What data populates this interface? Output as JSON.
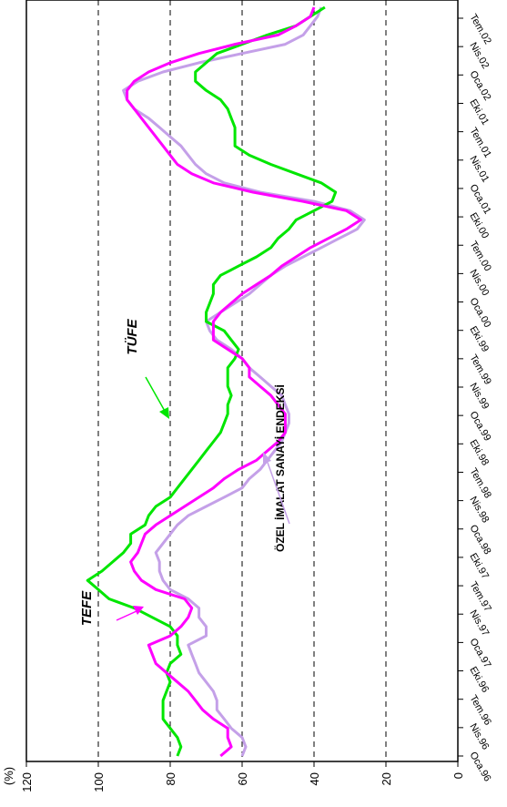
{
  "chart_data": {
    "type": "line",
    "ylabel": "(%)",
    "ylim": [
      0,
      120
    ],
    "yticks": [
      "0",
      "20",
      "40",
      "60",
      "80",
      "100",
      "120"
    ],
    "gridlines": [
      20,
      40,
      60,
      80,
      100
    ],
    "x_tick_labels": [
      "Oca.96",
      "Nis.96",
      "Tem.96",
      "Eki.96",
      "Oca.97",
      "Nis.97",
      "Tem.97",
      "Eki.97",
      "Oca.98",
      "Nis.98",
      "Tem.98",
      "Eki.98",
      "Oca.99",
      "Nis.99",
      "Tem.99",
      "Eki.99",
      "Oca.00",
      "Nis.00",
      "Tem.00",
      "Eki.00",
      "Oca.01",
      "Nis.01",
      "Tem.01",
      "Eki.01",
      "Oca.02",
      "Nis.02",
      "Tem.02"
    ],
    "series": [
      {
        "name": "TÜFE",
        "color": "#00e600",
        "values": [
          78,
          77,
          78,
          80,
          82,
          82,
          82,
          81,
          80,
          81,
          80,
          77,
          78,
          78,
          80,
          85,
          90,
          97,
          100,
          103,
          99,
          96,
          93,
          91,
          91,
          87,
          86,
          84,
          80,
          78,
          76,
          74,
          72,
          70,
          68,
          66,
          65,
          64,
          64,
          63,
          64,
          64,
          64,
          62,
          61,
          63,
          65,
          70,
          70,
          69,
          68,
          68,
          66,
          61,
          56,
          52,
          50,
          47,
          45,
          40,
          35,
          34,
          38,
          45,
          52,
          58,
          62,
          62,
          62,
          63,
          64,
          66,
          70,
          73,
          73,
          70,
          67,
          60,
          53,
          45,
          41,
          37
        ]
      },
      {
        "name": "TEFE",
        "color": "#ff00ff",
        "values": [
          66,
          63,
          64,
          64,
          68,
          71,
          73,
          75,
          78,
          81,
          84,
          85,
          86,
          80,
          77,
          75,
          74,
          76,
          84,
          88,
          90,
          91,
          89,
          88,
          87,
          84,
          80,
          76,
          72,
          68,
          65,
          61,
          56,
          53,
          50,
          48,
          48,
          48,
          50,
          52,
          55,
          58,
          58,
          60,
          64,
          68,
          68,
          68,
          66,
          63,
          60,
          56,
          52,
          49,
          45,
          41,
          36,
          31,
          27,
          31,
          43,
          57,
          68,
          74,
          78,
          80,
          82,
          84,
          86,
          88,
          90,
          92,
          92,
          90,
          86,
          80,
          72,
          62,
          50,
          45,
          41,
          40
        ]
      },
      {
        "name": "ÖZEL İMALAT SANAYİ ENDEKSİ",
        "color": "#c4a0e8",
        "values": [
          60,
          59,
          60,
          63,
          65,
          67,
          67,
          68,
          70,
          72,
          73,
          74,
          75,
          70,
          70,
          72,
          72,
          75,
          80,
          82,
          83,
          83,
          84,
          82,
          80,
          78,
          75,
          70,
          65,
          60,
          58,
          55,
          53,
          51,
          49,
          48,
          47,
          47,
          48,
          49,
          52,
          55,
          58,
          60,
          63,
          67,
          69,
          70,
          66,
          62,
          58,
          55,
          52,
          48,
          43,
          38,
          33,
          28,
          26,
          30,
          40,
          55,
          65,
          70,
          73,
          75,
          77,
          80,
          83,
          86,
          90,
          92,
          93,
          89,
          82,
          72,
          60,
          48,
          43,
          41,
          39,
          38
        ]
      }
    ],
    "annotations": [
      {
        "text": "TÜFE",
        "target_series": "TÜFE"
      },
      {
        "text": "TEFE",
        "target_series": "TEFE"
      },
      {
        "text": "ÖZEL İMALAT SANAYİ ENDEKSİ",
        "target_series": "ÖZEL İMALAT SANAYİ ENDEKSİ"
      }
    ]
  }
}
